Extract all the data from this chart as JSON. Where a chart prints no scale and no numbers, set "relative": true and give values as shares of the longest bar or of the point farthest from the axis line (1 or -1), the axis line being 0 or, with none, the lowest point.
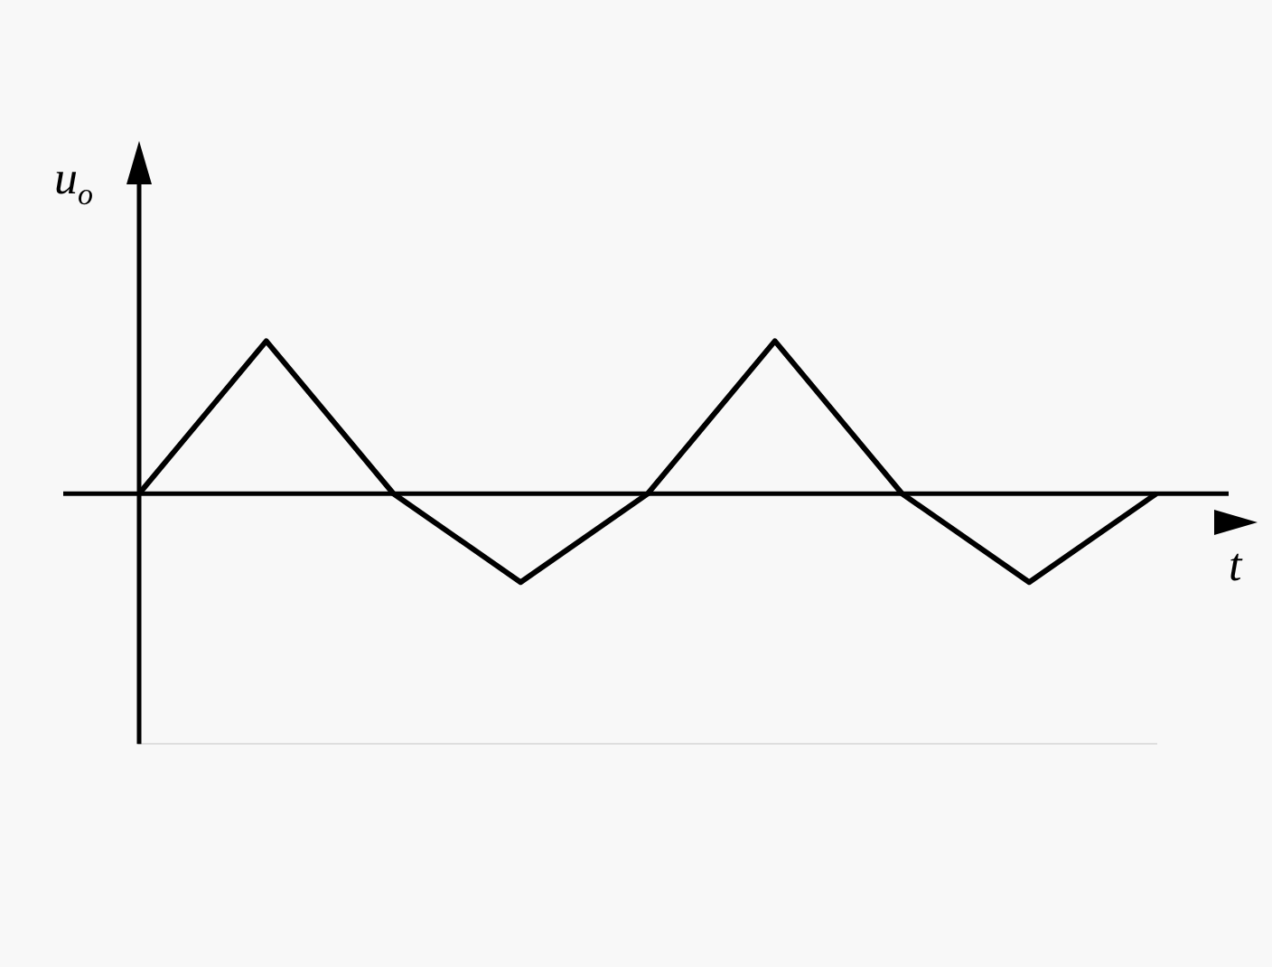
{
  "chart_data": {
    "type": "line",
    "relative": true,
    "xlabel": "t",
    "ylabel": "u$_{o}$",
    "categories": [
      null,
      null,
      null,
      null,
      null,
      null,
      null,
      null,
      null
    ],
    "series": [
      {
        "color": "#000000",
        "values": [
          0,
          1,
          0,
          -0.58,
          0,
          1,
          0,
          -0.58,
          0
        ]
      }
    ],
    "legend": false,
    "marker": "none",
    "line_style": "solid"
  }
}
